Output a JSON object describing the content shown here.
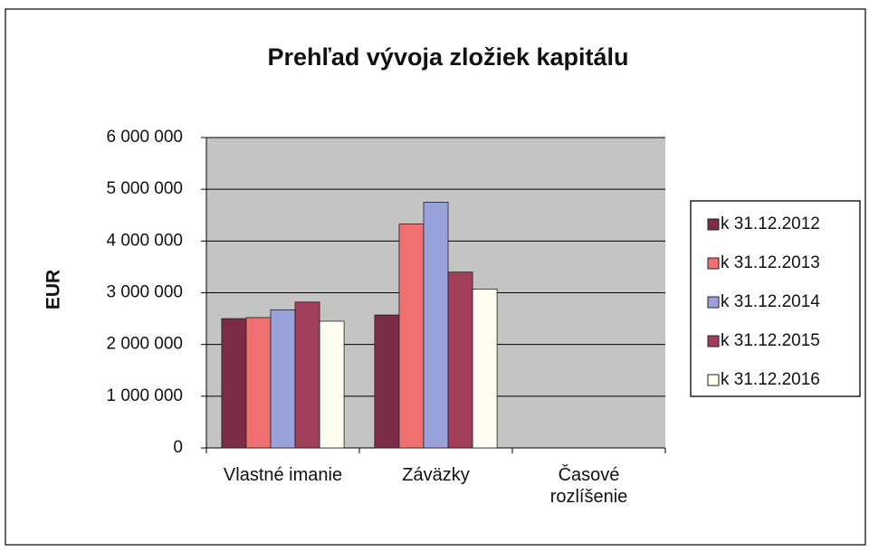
{
  "chart_data": {
    "type": "bar",
    "title": "Prehľad vývoja zložiek kapitálu",
    "y_label": "EUR",
    "categories": [
      "Vlastné imanie",
      "Záväzky",
      "Časové rozlíšenie"
    ],
    "series": [
      {
        "name": "k 31.12.2012",
        "color": "#7d2c48",
        "values": [
          2500000,
          2570000,
          0
        ]
      },
      {
        "name": "k 31.12.2013",
        "color": "#ee7070",
        "values": [
          2520000,
          4330000,
          0
        ]
      },
      {
        "name": "k 31.12.2014",
        "color": "#9aa2dc",
        "values": [
          2670000,
          4750000,
          0
        ]
      },
      {
        "name": "k 31.12.2015",
        "color": "#a13e5a",
        "values": [
          2820000,
          3400000,
          0
        ]
      },
      {
        "name": "k 31.12.2016",
        "color": "#fdfdf0",
        "values": [
          2450000,
          3070000,
          0
        ]
      }
    ],
    "ylim": [
      0,
      6000000
    ],
    "yticks": [
      0,
      {
        "value": 1000000,
        "label": "1 000 000"
      },
      {
        "value": 2000000,
        "label": "2 000 000"
      },
      {
        "value": 3000000,
        "label": "3 000 000"
      },
      {
        "value": 4000000,
        "label": "4 000 000"
      },
      {
        "value": 5000000,
        "label": "5 000 000"
      },
      {
        "value": 6000000,
        "label": "6 000 000"
      }
    ],
    "grid": true,
    "legend": "right"
  }
}
